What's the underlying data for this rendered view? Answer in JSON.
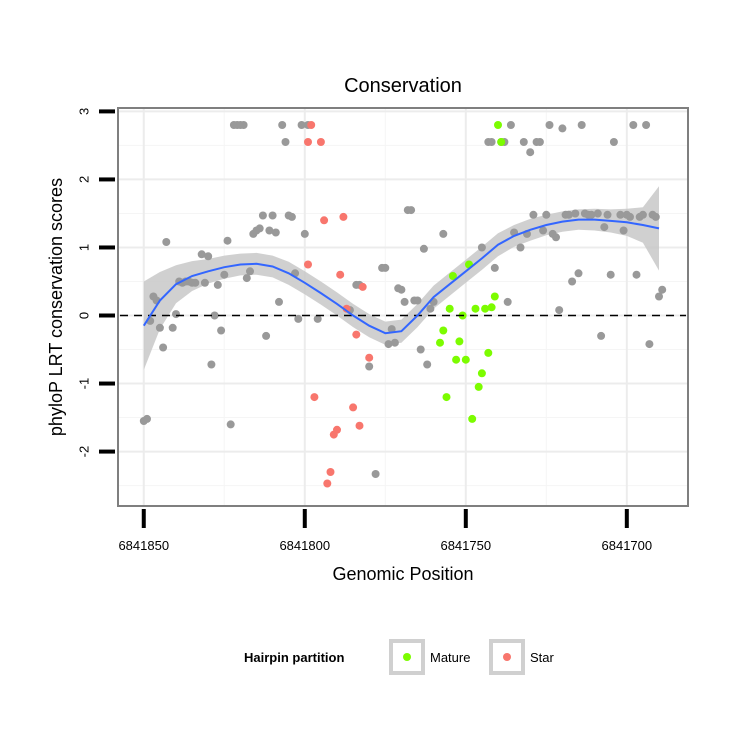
{
  "chart_data": {
    "type": "scatter",
    "title": "Conservation",
    "xlabel": "Genomic Position",
    "ylabel": "phyloP LRT conservation scores",
    "x_reversed": true,
    "xlim": [
      6841858,
      6841681
    ],
    "ylim": [
      -2.8,
      3.05
    ],
    "x_ticks": [
      6841850,
      6841800,
      6841750,
      6841700
    ],
    "x_tick_labels": [
      "6841850",
      "6841800",
      "6841750",
      "6841700"
    ],
    "y_ticks": [
      -2,
      -1,
      0,
      1,
      2,
      3
    ],
    "y_tick_labels": [
      "-2",
      "-1",
      "0",
      "1",
      "2",
      "3"
    ],
    "reference_line": {
      "y": 0,
      "style": "dashed"
    },
    "grid": true,
    "legend": {
      "title": "Hairpin partition",
      "position": "bottom"
    },
    "colors": {
      "other": "#999999",
      "Mature": "#7CFC00",
      "Star": "#F8766D",
      "smooth": "#3366FF",
      "band": "#C8C8C8"
    },
    "series": [
      {
        "name": "",
        "color_key": "other",
        "points": [
          [
            6841850,
            -1.55
          ],
          [
            6841849,
            -1.52
          ],
          [
            6841848,
            -0.08
          ],
          [
            6841847,
            0.28
          ],
          [
            6841846,
            0.22
          ],
          [
            6841845,
            -0.18
          ],
          [
            6841844,
            -0.47
          ],
          [
            6841843,
            1.08
          ],
          [
            6841841,
            -0.18
          ],
          [
            6841840,
            0.02
          ],
          [
            6841839,
            0.5
          ],
          [
            6841838,
            0.48
          ],
          [
            6841837,
            0.5
          ],
          [
            6841836,
            0.5
          ],
          [
            6841835,
            0.48
          ],
          [
            6841834,
            0.48
          ],
          [
            6841832,
            0.9
          ],
          [
            6841831,
            0.48
          ],
          [
            6841830,
            0.87
          ],
          [
            6841829,
            -0.72
          ],
          [
            6841828,
            0.0
          ],
          [
            6841827,
            0.45
          ],
          [
            6841826,
            -0.22
          ],
          [
            6841825,
            0.6
          ],
          [
            6841824,
            1.1
          ],
          [
            6841823,
            -1.6
          ],
          [
            6841822,
            2.8
          ],
          [
            6841821,
            2.8
          ],
          [
            6841820,
            2.8
          ],
          [
            6841819,
            2.8
          ],
          [
            6841818,
            0.55
          ],
          [
            6841817,
            0.65
          ],
          [
            6841816,
            1.2
          ],
          [
            6841815,
            1.25
          ],
          [
            6841814,
            1.28
          ],
          [
            6841813,
            1.47
          ],
          [
            6841812,
            -0.3
          ],
          [
            6841811,
            1.25
          ],
          [
            6841810,
            1.47
          ],
          [
            6841809,
            1.22
          ],
          [
            6841808,
            0.2
          ],
          [
            6841807,
            2.8
          ],
          [
            6841806,
            2.55
          ],
          [
            6841805,
            1.47
          ],
          [
            6841804,
            1.45
          ],
          [
            6841803,
            0.62
          ],
          [
            6841802,
            -0.05
          ],
          [
            6841801,
            2.8
          ],
          [
            6841800,
            1.2
          ],
          [
            6841799,
            2.8
          ],
          [
            6841796,
            -0.05
          ],
          [
            6841786,
            0.08
          ],
          [
            6841784,
            0.45
          ],
          [
            6841783,
            0.45
          ],
          [
            6841780,
            -0.75
          ],
          [
            6841778,
            -2.33
          ],
          [
            6841776,
            0.7
          ],
          [
            6841775,
            0.7
          ],
          [
            6841774,
            -0.42
          ],
          [
            6841773,
            -0.2
          ],
          [
            6841772,
            -0.4
          ],
          [
            6841771,
            0.4
          ],
          [
            6841770,
            0.38
          ],
          [
            6841769,
            0.2
          ],
          [
            6841768,
            1.55
          ],
          [
            6841767,
            1.55
          ],
          [
            6841766,
            0.22
          ],
          [
            6841765,
            0.22
          ],
          [
            6841764,
            -0.5
          ],
          [
            6841763,
            0.98
          ],
          [
            6841762,
            -0.72
          ],
          [
            6841761,
            0.1
          ],
          [
            6841760,
            0.2
          ],
          [
            6841757,
            1.2
          ],
          [
            6841745,
            1.0
          ],
          [
            6841743,
            2.55
          ],
          [
            6841742,
            2.55
          ],
          [
            6841741,
            0.7
          ],
          [
            6841739,
            2.55
          ],
          [
            6841738,
            2.55
          ],
          [
            6841737,
            0.2
          ],
          [
            6841736,
            2.8
          ],
          [
            6841735,
            1.22
          ],
          [
            6841733,
            1.0
          ],
          [
            6841732,
            2.55
          ],
          [
            6841731,
            1.2
          ],
          [
            6841730,
            2.4
          ],
          [
            6841729,
            1.48
          ],
          [
            6841728,
            2.55
          ],
          [
            6841727,
            2.55
          ],
          [
            6841726,
            1.25
          ],
          [
            6841725,
            1.48
          ],
          [
            6841724,
            2.8
          ],
          [
            6841723,
            1.2
          ],
          [
            6841722,
            1.15
          ],
          [
            6841721,
            0.08
          ],
          [
            6841720,
            2.75
          ],
          [
            6841719,
            1.48
          ],
          [
            6841718,
            1.48
          ],
          [
            6841717,
            0.5
          ],
          [
            6841716,
            1.5
          ],
          [
            6841715,
            0.62
          ],
          [
            6841714,
            2.8
          ],
          [
            6841713,
            1.5
          ],
          [
            6841712,
            1.48
          ],
          [
            6841711,
            1.48
          ],
          [
            6841709,
            1.5
          ],
          [
            6841708,
            -0.3
          ],
          [
            6841707,
            1.3
          ],
          [
            6841706,
            1.48
          ],
          [
            6841705,
            0.6
          ],
          [
            6841704,
            2.55
          ],
          [
            6841702,
            1.48
          ],
          [
            6841701,
            1.25
          ],
          [
            6841700,
            1.48
          ],
          [
            6841699,
            1.45
          ],
          [
            6841698,
            2.8
          ],
          [
            6841697,
            0.6
          ],
          [
            6841696,
            1.45
          ],
          [
            6841695,
            1.48
          ],
          [
            6841694,
            2.8
          ],
          [
            6841693,
            -0.42
          ],
          [
            6841692,
            1.48
          ],
          [
            6841691,
            1.45
          ],
          [
            6841690,
            0.28
          ],
          [
            6841689,
            0.38
          ]
        ]
      },
      {
        "name": "Mature",
        "color_key": "Mature",
        "points": [
          [
            6841758,
            -0.4
          ],
          [
            6841757,
            -0.22
          ],
          [
            6841756,
            -1.2
          ],
          [
            6841755,
            0.1
          ],
          [
            6841754,
            0.58
          ],
          [
            6841753,
            -0.65
          ],
          [
            6841752,
            -0.38
          ],
          [
            6841751,
            0.0
          ],
          [
            6841750,
            -0.65
          ],
          [
            6841749,
            0.75
          ],
          [
            6841748,
            -1.52
          ],
          [
            6841747,
            0.1
          ],
          [
            6841746,
            -1.05
          ],
          [
            6841745,
            -0.85
          ],
          [
            6841744,
            0.1
          ],
          [
            6841743,
            -0.55
          ],
          [
            6841742,
            0.12
          ],
          [
            6841741,
            0.28
          ],
          [
            6841740,
            2.8
          ],
          [
            6841739,
            2.55
          ]
        ]
      },
      {
        "name": "Star",
        "color_key": "Star",
        "points": [
          [
            6841799,
            2.55
          ],
          [
            6841798,
            2.8
          ],
          [
            6841797,
            -1.2
          ],
          [
            6841795,
            2.55
          ],
          [
            6841794,
            1.4
          ],
          [
            6841793,
            -2.47
          ],
          [
            6841792,
            -2.3
          ],
          [
            6841791,
            -1.75
          ],
          [
            6841790,
            -1.68
          ],
          [
            6841789,
            0.6
          ],
          [
            6841788,
            1.45
          ],
          [
            6841787,
            0.1
          ],
          [
            6841785,
            -1.35
          ],
          [
            6841784,
            -0.28
          ],
          [
            6841783,
            -1.62
          ],
          [
            6841782,
            0.42
          ],
          [
            6841780,
            -0.62
          ],
          [
            6841799,
            0.75
          ]
        ]
      }
    ],
    "smooth": {
      "x": [
        6841850,
        6841845,
        6841840,
        6841835,
        6841830,
        6841825,
        6841820,
        6841815,
        6841810,
        6841805,
        6841800,
        6841795,
        6841790,
        6841785,
        6841780,
        6841775,
        6841770,
        6841765,
        6841760,
        6841755,
        6841750,
        6841745,
        6841740,
        6841735,
        6841730,
        6841725,
        6841720,
        6841715,
        6841710,
        6841705,
        6841700,
        6841695,
        6841690
      ],
      "y": [
        -0.15,
        0.22,
        0.46,
        0.58,
        0.65,
        0.71,
        0.75,
        0.76,
        0.72,
        0.62,
        0.48,
        0.33,
        0.17,
        0.0,
        -0.15,
        -0.26,
        -0.23,
        0.0,
        0.27,
        0.46,
        0.65,
        0.84,
        1.04,
        1.17,
        1.26,
        1.33,
        1.38,
        1.41,
        1.41,
        1.39,
        1.37,
        1.33,
        1.28
      ],
      "se": [
        0.65,
        0.42,
        0.28,
        0.22,
        0.18,
        0.17,
        0.16,
        0.16,
        0.16,
        0.17,
        0.17,
        0.17,
        0.17,
        0.17,
        0.17,
        0.17,
        0.17,
        0.17,
        0.17,
        0.17,
        0.17,
        0.17,
        0.17,
        0.16,
        0.16,
        0.15,
        0.15,
        0.15,
        0.16,
        0.17,
        0.2,
        0.26,
        0.62
      ]
    }
  }
}
